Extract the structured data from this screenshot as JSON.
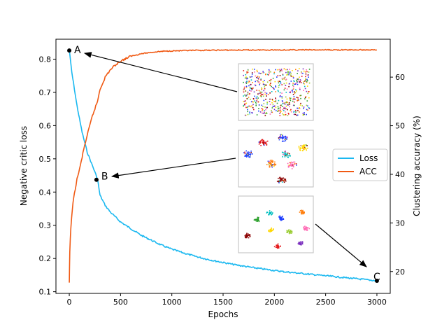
{
  "chart_data": {
    "type": "line",
    "xlabel": "Epochs",
    "ylabel_left": "Negative critic loss",
    "ylabel_right": "Clustering accuracy (%)",
    "xlim": [
      -130,
      3130
    ],
    "ylim_left": [
      0.095,
      0.86
    ],
    "ylim_right": [
      15.5,
      67.8
    ],
    "xticks": [
      0,
      500,
      1000,
      1500,
      2000,
      2500,
      3000
    ],
    "yticks_left": [
      0.1,
      0.2,
      0.3,
      0.4,
      0.5,
      0.6,
      0.7,
      0.8
    ],
    "yticks_right": [
      20,
      30,
      40,
      50,
      60
    ],
    "grid": false,
    "legend_position": "center-right",
    "series": [
      {
        "name": "Loss",
        "axis": "left",
        "color": "#1ab8f0",
        "x": [
          0,
          10,
          25,
          50,
          75,
          100,
          125,
          150,
          175,
          200,
          225,
          250,
          275,
          300,
          350,
          400,
          450,
          500,
          600,
          700,
          800,
          900,
          1000,
          1100,
          1200,
          1300,
          1400,
          1500,
          1600,
          1700,
          1800,
          1900,
          2000,
          2100,
          2200,
          2300,
          2400,
          2500,
          2600,
          2700,
          2800,
          2900,
          3000
        ],
        "values": [
          0.83,
          0.8,
          0.76,
          0.71,
          0.66,
          0.62,
          0.58,
          0.55,
          0.52,
          0.5,
          0.48,
          0.46,
          0.44,
          0.39,
          0.36,
          0.34,
          0.325,
          0.31,
          0.29,
          0.27,
          0.255,
          0.24,
          0.228,
          0.218,
          0.209,
          0.201,
          0.194,
          0.188,
          0.182,
          0.177,
          0.172,
          0.168,
          0.164,
          0.16,
          0.157,
          0.154,
          0.151,
          0.148,
          0.145,
          0.142,
          0.139,
          0.136,
          0.133
        ]
      },
      {
        "name": "ACC",
        "axis": "right",
        "color": "#f05a14",
        "x": [
          0,
          5,
          15,
          30,
          50,
          75,
          100,
          125,
          150,
          175,
          200,
          225,
          250,
          275,
          300,
          350,
          400,
          450,
          500,
          600,
          700,
          800,
          900,
          1000,
          1250,
          1500,
          2000,
          2500,
          3000
        ],
        "values": [
          17.5,
          24,
          29,
          33,
          36,
          39,
          41,
          43.5,
          46,
          48,
          50,
          52,
          53.5,
          55,
          57.5,
          60,
          61.5,
          62.5,
          63.3,
          64.3,
          64.8,
          65.1,
          65.3,
          65.4,
          65.5,
          65.55,
          65.6,
          65.6,
          65.6
        ]
      }
    ],
    "annotations": [
      {
        "label": "A",
        "x": 0,
        "y": 0.826
      },
      {
        "label": "B",
        "x": 265,
        "y": 0.437
      },
      {
        "label": "C",
        "x": 3000,
        "y": 0.133
      }
    ]
  }
}
